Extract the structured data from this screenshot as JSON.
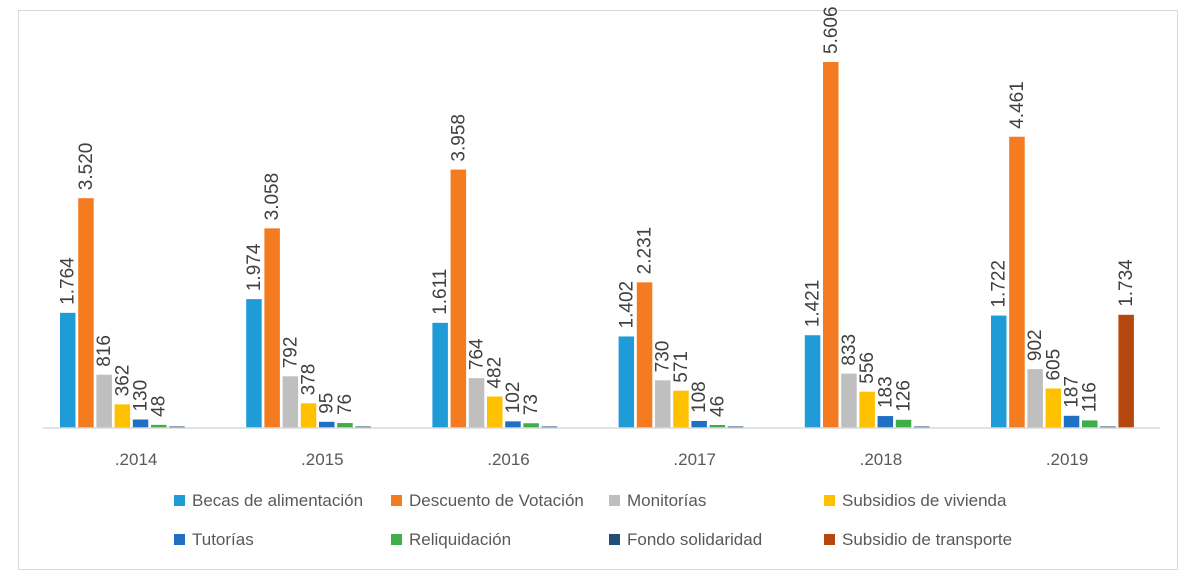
{
  "chart_data": {
    "type": "bar",
    "categories": [
      ".2014",
      ".2015",
      ".2016",
      ".2017",
      ".2018",
      ".2019"
    ],
    "ylim": [
      0,
      5606
    ],
    "grid": false,
    "legend_position": "bottom",
    "series": [
      {
        "name": "Becas de alimentación",
        "color": "#1f9bd7",
        "values": [
          1764,
          1974,
          1611,
          1402,
          1421,
          1722
        ],
        "labels": [
          "1.764",
          "1.974",
          "1.611",
          "1.402",
          "1.421",
          "1.722"
        ]
      },
      {
        "name": "Descuento de Votación",
        "color": "#f47b20",
        "values": [
          3520,
          3058,
          3958,
          2231,
          5606,
          4461
        ],
        "labels": [
          "3.520",
          "3.058",
          "3.958",
          "2.231",
          "5.606",
          "4.461"
        ]
      },
      {
        "name": "Monitorías",
        "color": "#bfbfbf",
        "values": [
          816,
          792,
          764,
          730,
          833,
          902
        ],
        "labels": [
          "816",
          "792",
          "764",
          "730",
          "833",
          "902"
        ]
      },
      {
        "name": "Subsidios de vivienda",
        "color": "#ffc000",
        "values": [
          362,
          378,
          482,
          571,
          556,
          605
        ],
        "labels": [
          "362",
          "378",
          "482",
          "571",
          "556",
          "605"
        ]
      },
      {
        "name": "Tutorías",
        "color": "#1f6fc4",
        "values": [
          130,
          95,
          102,
          108,
          183,
          187
        ],
        "labels": [
          "130",
          "95",
          "102",
          "108",
          "183",
          "187"
        ]
      },
      {
        "name": "Reliquidación",
        "color": "#3fae49",
        "values": [
          48,
          76,
          73,
          46,
          126,
          116
        ],
        "labels": [
          "48",
          "76",
          "73",
          "46",
          "126",
          "116"
        ]
      },
      {
        "name": "Fondo solidaridad",
        "color": "#1f4e79",
        "values": [
          0,
          0,
          0,
          0,
          0,
          0
        ],
        "labels": [
          "",
          "",
          "",
          "",
          "",
          ""
        ]
      },
      {
        "name": "Subsidio de transporte",
        "color": "#b5470f",
        "values": [
          0,
          0,
          0,
          0,
          0,
          1734
        ],
        "labels": [
          "",
          "",
          "",
          "",
          "",
          "1.734"
        ]
      }
    ]
  }
}
